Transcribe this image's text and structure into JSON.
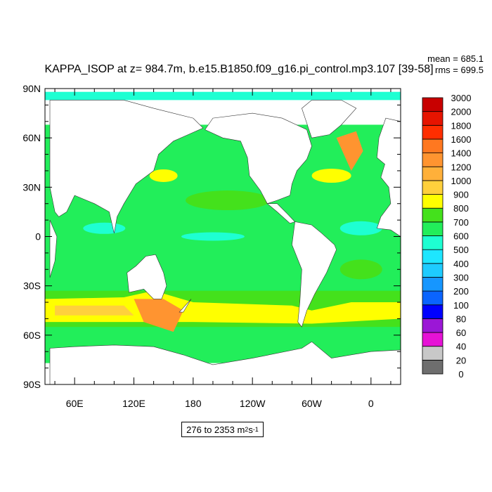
{
  "chart_data": {
    "type": "heatmap",
    "title": "KAPPA_ISOP at z= 984.7m, b.e15.B1850.f09_g16.pi_control.mp3.107 [39-58]",
    "stats": {
      "mean_label": "mean = 685.1",
      "rms_label": "rms = 699.5"
    },
    "y_ticks": [
      "90N",
      "60N",
      "30N",
      "0",
      "30S",
      "60S",
      "90S"
    ],
    "y_values": [
      90,
      60,
      30,
      0,
      -30,
      -60,
      -90
    ],
    "x_ticks": [
      "60E",
      "120E",
      "180",
      "120W",
      "60W",
      "0"
    ],
    "x_values": [
      60,
      120,
      180,
      240,
      300,
      360
    ],
    "xlim": [
      30,
      390
    ],
    "ylim": [
      -90,
      90
    ],
    "range_label": {
      "prefix": "276 to 2353 m",
      "exp1": "2",
      "mid": " s",
      "exp2": "-1"
    },
    "colorbar": {
      "levels": [
        "0",
        "20",
        "40",
        "60",
        "80",
        "100",
        "200",
        "300",
        "400",
        "500",
        "600",
        "700",
        "800",
        "900",
        "1000",
        "1200",
        "1400",
        "1600",
        "1800",
        "2000",
        "3000"
      ],
      "colors": [
        "#6e6e6e",
        "#c8c8c8",
        "#e612d6",
        "#9b17d6",
        "#0000ff",
        "#0a64ff",
        "#1696ff",
        "#1ecbff",
        "#1ee6ff",
        "#1effd2",
        "#22ee5a",
        "#44e11c",
        "#ffff00",
        "#ffd03c",
        "#ffb03a",
        "#ff9430",
        "#ff7820",
        "#ff2e00",
        "#e61400",
        "#c80000"
      ]
    },
    "field_cells": [
      {
        "x": [
          35,
          390
        ],
        "y": [
          -90,
          90
        ],
        "value": "ocean-base"
      }
    ]
  },
  "icons": {
    "continents": "land-mask"
  }
}
